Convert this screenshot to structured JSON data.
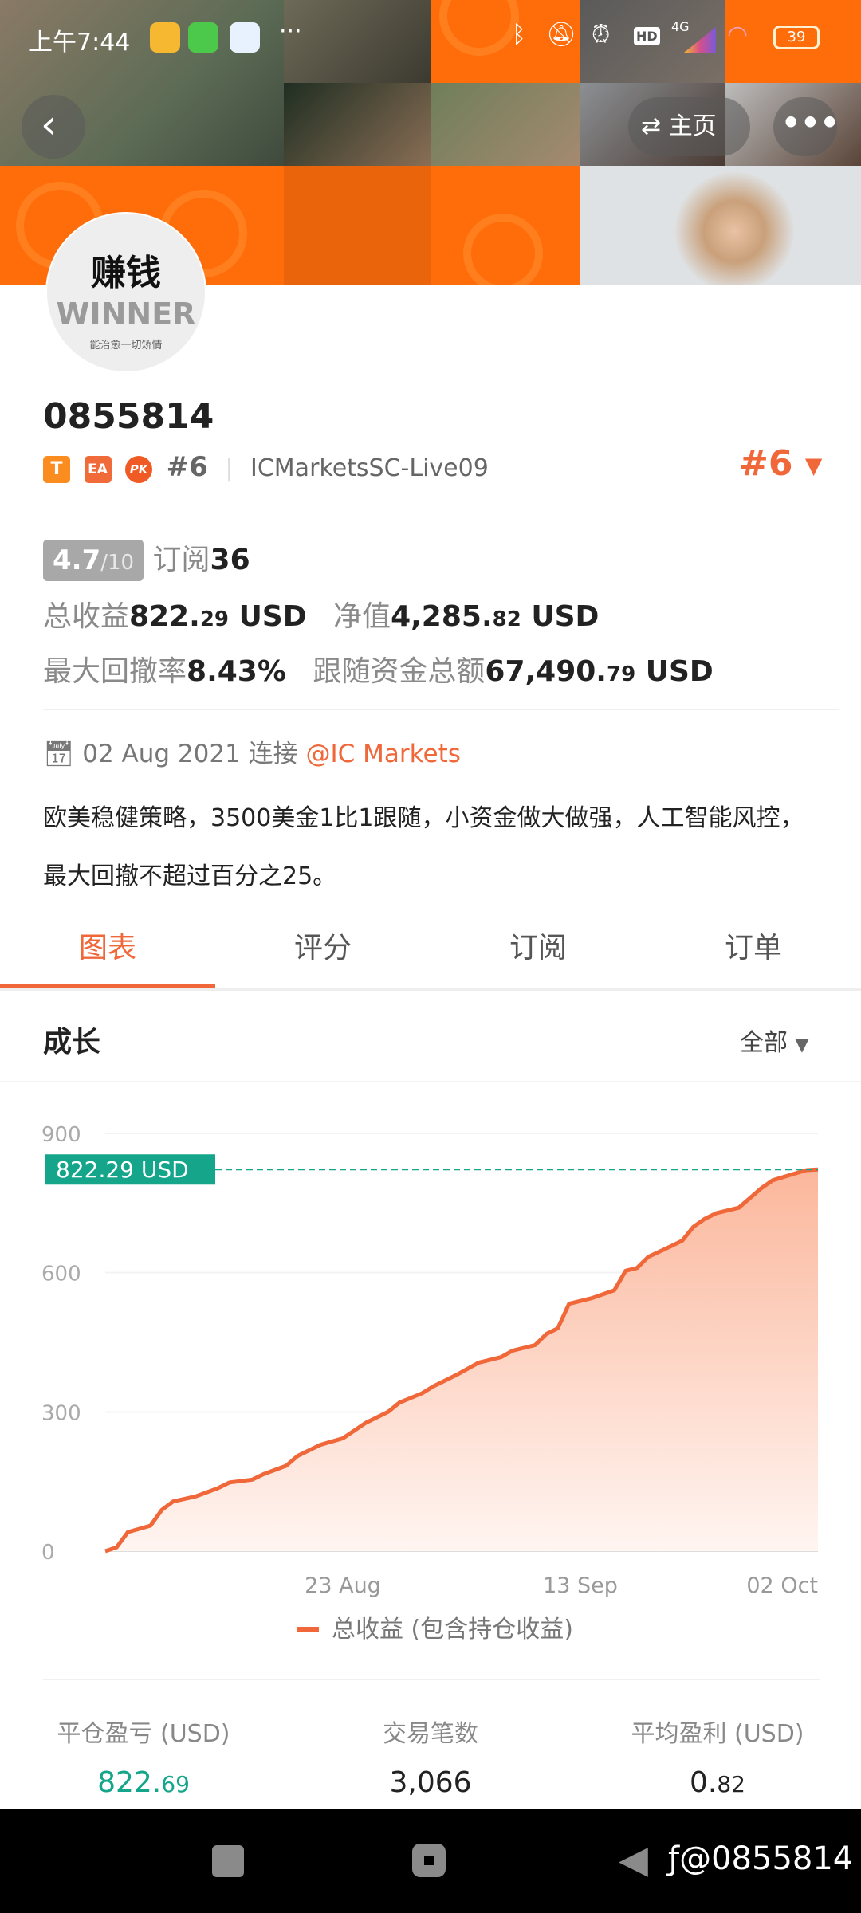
{
  "status_bar": {
    "time": "上午7:44",
    "battery": "39",
    "network": "4G",
    "hd": "HD",
    "icons": [
      "weibo-icon",
      "shield-icon",
      "browser-icon",
      "more-dots-icon",
      "bluetooth-icon",
      "mute-icon",
      "alarm-icon",
      "hd-icon",
      "signal-icon",
      "wifi-icon",
      "battery-icon"
    ]
  },
  "header": {
    "home_label": "主页",
    "back_icon": "chevron-left-icon",
    "more_icon": "more-dots-icon"
  },
  "avatar": {
    "line1": "赚钱",
    "line2": "WINNER",
    "line3": "能治愈一切矫情"
  },
  "profile": {
    "name": "0855814",
    "badges": [
      "T",
      "EA",
      "PK"
    ],
    "rank": "#6",
    "server": "ICMarketsSC-Live09",
    "rank_right": "#6",
    "rating": "4.7",
    "rating_max": "/10",
    "subscribe_label": "订阅",
    "subscribe_count": "36",
    "total_profit_label": "总收益",
    "total_profit_int": "822.",
    "total_profit_dec": "29",
    "total_profit_unit": " USD",
    "equity_label": "净值",
    "equity_int": "4,285.",
    "equity_dec": "82",
    "equity_unit": " USD",
    "drawdown_label": "最大回撤率",
    "drawdown": "8.43%",
    "follow_label": "跟随资金总额",
    "follow_int": "67,490.",
    "follow_dec": "79",
    "follow_unit": " USD",
    "connect_date": "02 Aug 2021",
    "connect_label": "连接",
    "broker": "@IC Markets",
    "description": "欧美稳健策略，3500美金1比1跟随，小资金做大做强，人工智能风控，最大回撤不超过百分之25。"
  },
  "tabs": [
    {
      "label": "图表",
      "active": true
    },
    {
      "label": "评分"
    },
    {
      "label": "订阅"
    },
    {
      "label": "订单"
    }
  ],
  "section": {
    "title": "成长",
    "filter": "全部"
  },
  "colors": {
    "accent": "#f0683a",
    "teal": "#14a58a",
    "orange": "#ff6d0a"
  },
  "chart_data": {
    "type": "area",
    "ylim": [
      0,
      900
    ],
    "yticks": [
      "0",
      "300",
      "600",
      "900"
    ],
    "xticks": [
      "23 Aug",
      "13 Sep",
      "02 Oct"
    ],
    "current_label": "822.29 USD",
    "legend": "总收益 (包含持仓收益)",
    "legend_position": "bottom",
    "grid": true,
    "series": [
      {
        "name": "总收益 (包含持仓收益)",
        "points": [
          [
            "2021-08-02",
            0
          ],
          [
            "2021-08-03",
            8
          ],
          [
            "2021-08-04",
            41
          ],
          [
            "2021-08-06",
            55
          ],
          [
            "2021-08-07",
            89
          ],
          [
            "2021-08-08",
            107
          ],
          [
            "2021-08-10",
            118
          ],
          [
            "2021-08-12",
            136
          ],
          [
            "2021-08-13",
            148
          ],
          [
            "2021-08-15",
            154
          ],
          [
            "2021-08-16",
            166
          ],
          [
            "2021-08-18",
            184
          ],
          [
            "2021-08-19",
            205
          ],
          [
            "2021-08-21",
            229
          ],
          [
            "2021-08-23",
            243
          ],
          [
            "2021-08-25",
            276
          ],
          [
            "2021-08-27",
            300
          ],
          [
            "2021-08-28",
            320
          ],
          [
            "2021-08-30",
            340
          ],
          [
            "2021-08-31",
            355
          ],
          [
            "2021-09-02",
            379
          ],
          [
            "2021-09-04",
            406
          ],
          [
            "2021-09-06",
            418
          ],
          [
            "2021-09-07",
            432
          ],
          [
            "2021-09-09",
            444
          ],
          [
            "2021-09-10",
            468
          ],
          [
            "2021-09-11",
            480
          ],
          [
            "2021-09-12",
            533
          ],
          [
            "2021-09-14",
            545
          ],
          [
            "2021-09-16",
            562
          ],
          [
            "2021-09-17",
            604
          ],
          [
            "2021-09-18",
            610
          ],
          [
            "2021-09-19",
            634
          ],
          [
            "2021-09-21",
            657
          ],
          [
            "2021-09-22",
            669
          ],
          [
            "2021-09-23",
            699
          ],
          [
            "2021-09-24",
            716
          ],
          [
            "2021-09-25",
            728
          ],
          [
            "2021-09-27",
            740
          ],
          [
            "2021-09-28",
            761
          ],
          [
            "2021-09-29",
            782
          ],
          [
            "2021-09-30",
            799
          ],
          [
            "2021-10-02",
            814
          ],
          [
            "2021-10-03",
            821
          ],
          [
            "2021-10-04",
            822.29
          ]
        ]
      }
    ]
  },
  "stats": [
    {
      "label": "平仓盈亏 (USD)",
      "int": "822.",
      "dec": "69"
    },
    {
      "label": "交易笔数",
      "int": "3,066",
      "dec": ""
    },
    {
      "label": "平均盈利 (USD)",
      "int": "0.",
      "dec": "82"
    }
  ],
  "watermark": "@0855814"
}
